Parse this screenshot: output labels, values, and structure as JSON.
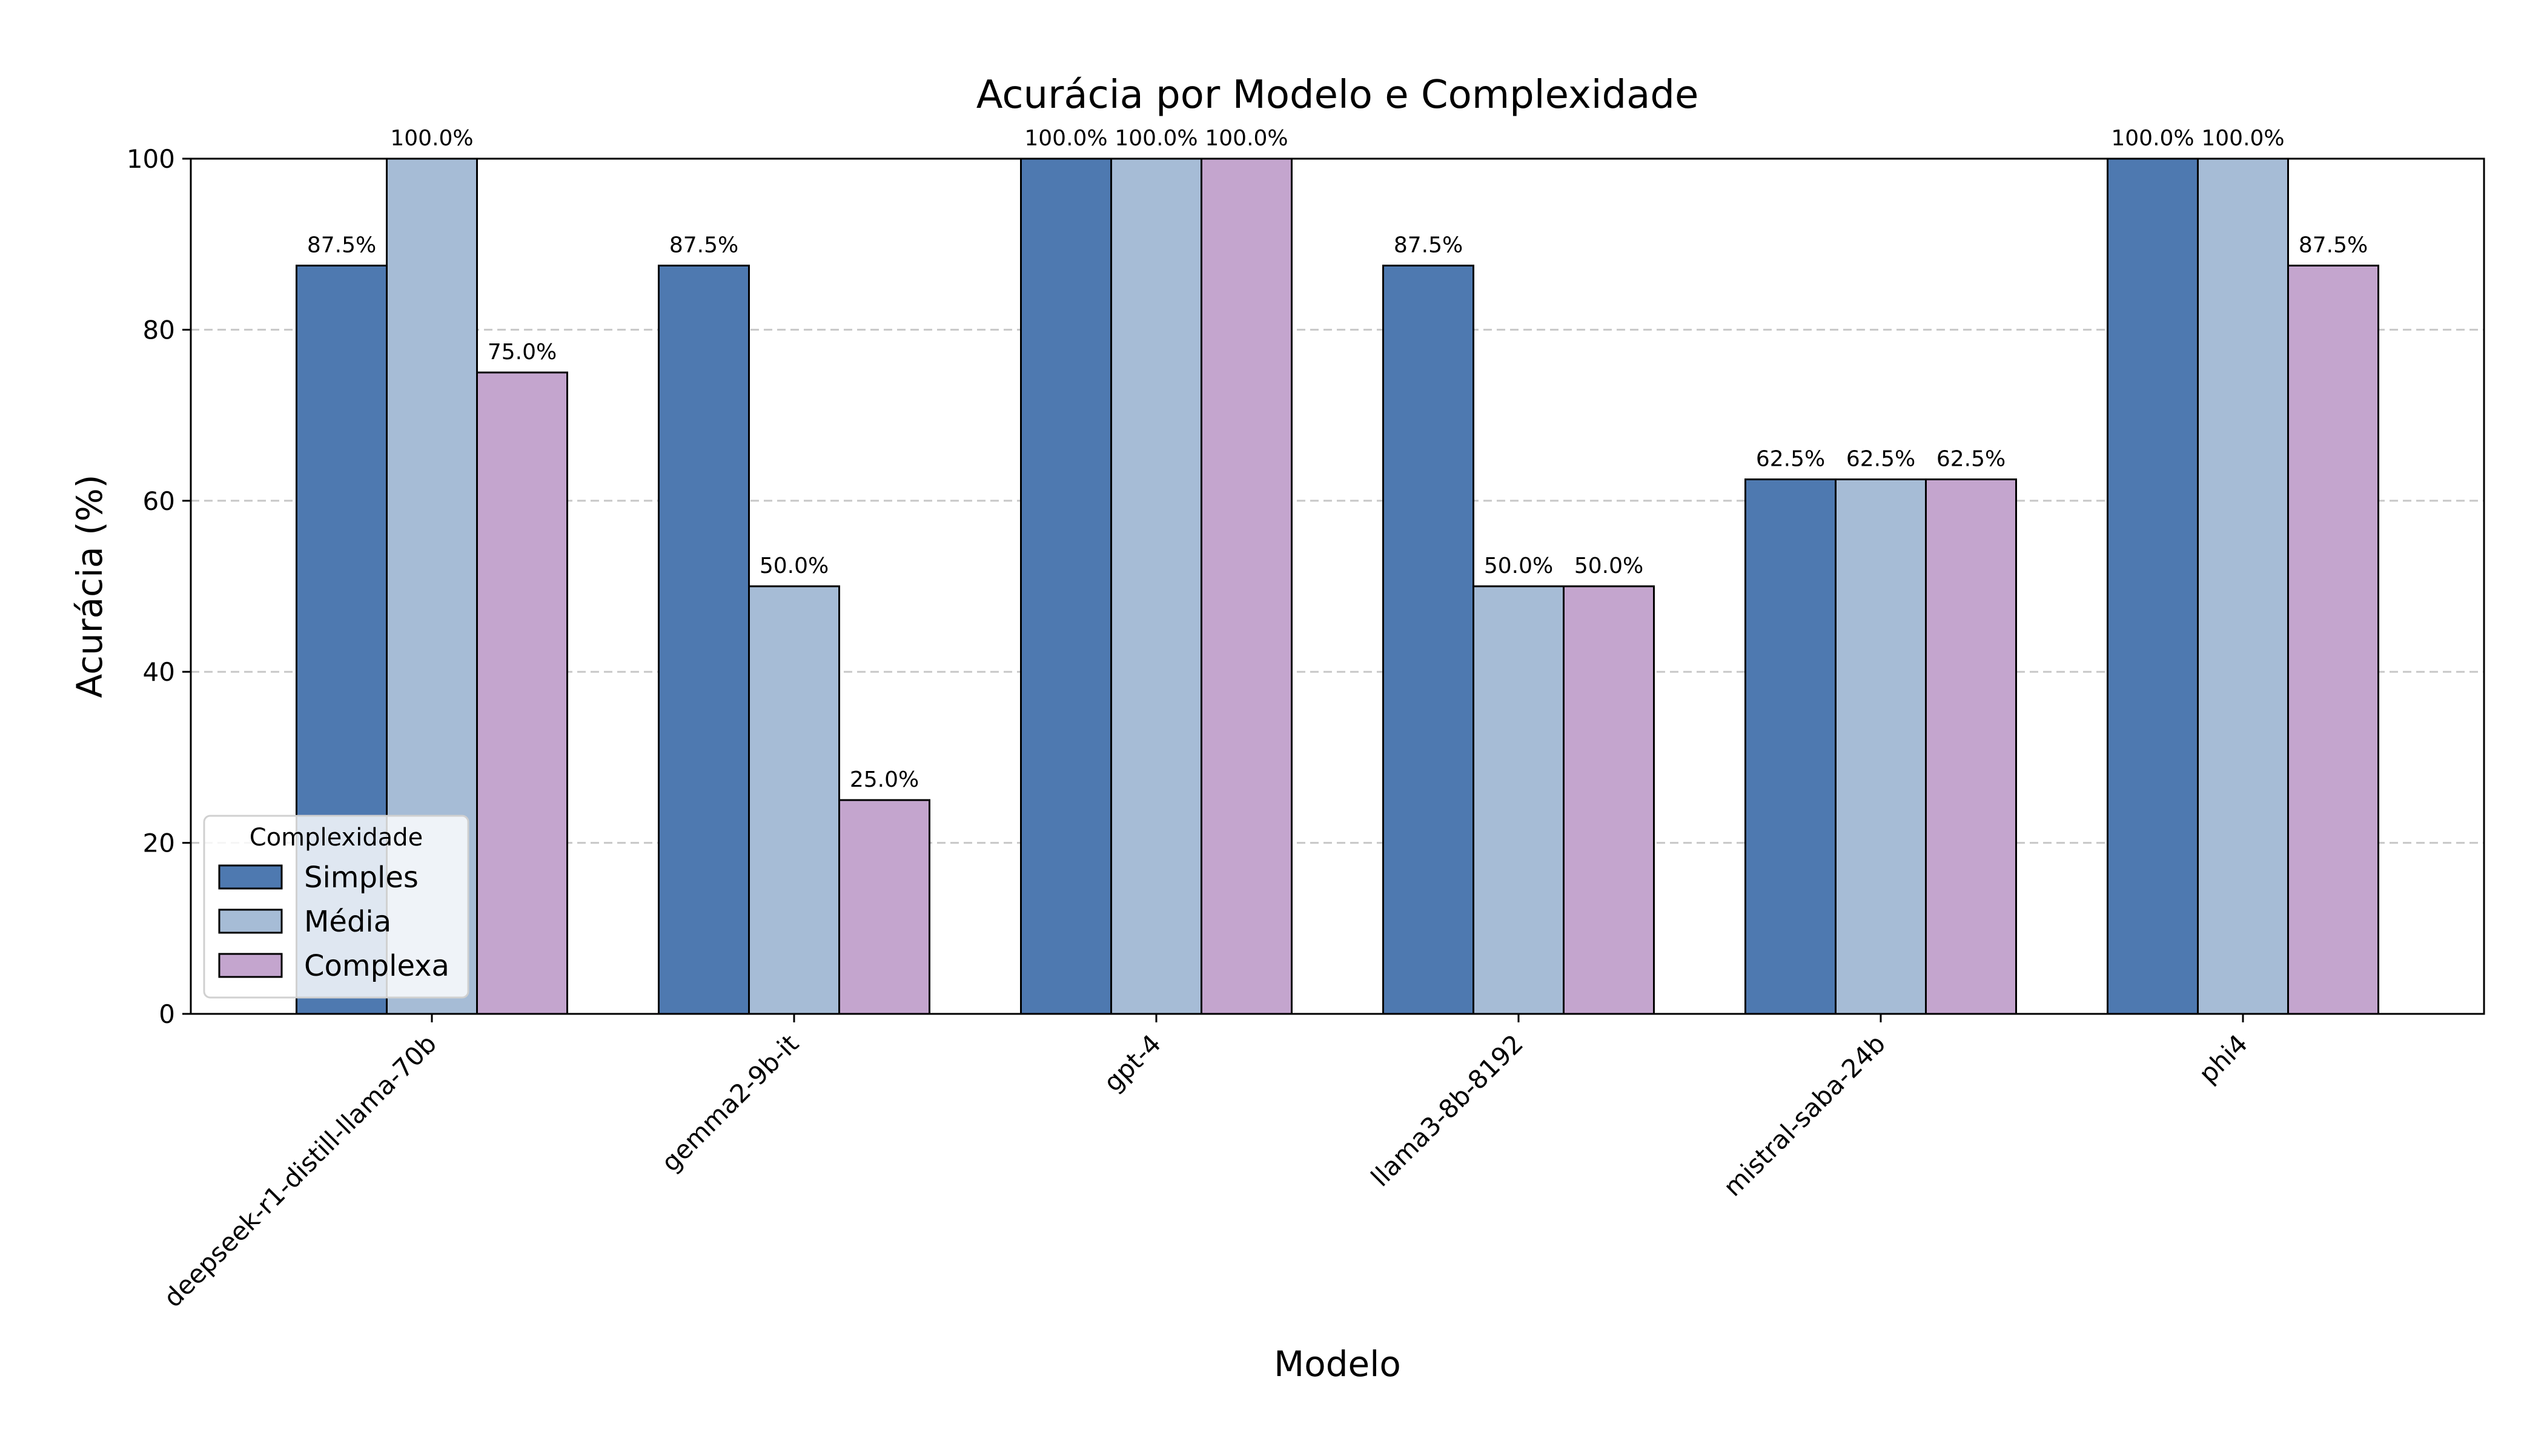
{
  "chart_data": {
    "type": "bar",
    "title": "Acurácia por Modelo e Complexidade",
    "xlabel": "Modelo",
    "ylabel": "Acurácia (%)",
    "ylim": [
      0,
      100
    ],
    "yticks": [
      0,
      20,
      40,
      60,
      80,
      100
    ],
    "grid": "y-dashed",
    "categories": [
      "deepseek-r1-distill-llama-70b",
      "gemma2-9b-it",
      "gpt-4",
      "llama3-8b-8192",
      "mistral-saba-24b",
      "phi4"
    ],
    "series": [
      {
        "name": "Simples",
        "color": "#4e79b0",
        "values": [
          87.5,
          87.5,
          100.0,
          87.5,
          62.5,
          100.0
        ]
      },
      {
        "name": "Média",
        "color": "#a6bcd6",
        "values": [
          100.0,
          50.0,
          100.0,
          50.0,
          62.5,
          100.0
        ]
      },
      {
        "name": "Complexa",
        "color": "#c4a5ce",
        "values": [
          75.0,
          25.0,
          100.0,
          50.0,
          62.5,
          87.5
        ]
      }
    ],
    "data_labels": [
      [
        "87.5%",
        "87.5%",
        "100.0%",
        "87.5%",
        "62.5%",
        "100.0%"
      ],
      [
        "100.0%",
        "50.0%",
        "100.0%",
        "50.0%",
        "62.5%",
        "100.0%"
      ],
      [
        "75.0%",
        "25.0%",
        "100.0%",
        "50.0%",
        "62.5%",
        "87.5%"
      ]
    ],
    "legend": {
      "title": "Complexidade",
      "position": "lower-left"
    }
  }
}
